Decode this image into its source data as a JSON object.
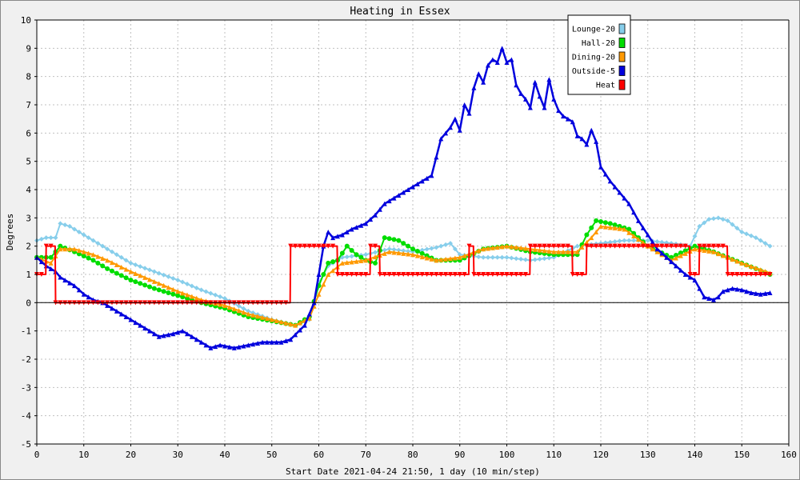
{
  "chart_data": {
    "type": "line",
    "title": "Heating in Essex",
    "xlabel": "Start Date 2021-04-24 21:50, 1 day (10 min/step)",
    "ylabel": "Degrees",
    "xlim": [
      0,
      160
    ],
    "ylim": [
      -5,
      10
    ],
    "xticks": [
      0,
      10,
      20,
      30,
      40,
      50,
      60,
      70,
      80,
      90,
      100,
      110,
      120,
      130,
      140,
      150,
      160
    ],
    "yticks": [
      -5,
      -4,
      -3,
      -2,
      -1,
      0,
      1,
      2,
      3,
      4,
      5,
      6,
      7,
      8,
      9,
      10
    ],
    "grid": true,
    "legend_position": "top-right",
    "series": [
      {
        "name": "Lounge-20",
        "color": "#87ceeb",
        "marker": "diamond",
        "x": [
          0,
          2,
          4,
          5,
          7,
          10,
          15,
          20,
          25,
          30,
          35,
          40,
          45,
          50,
          55,
          58,
          60,
          62,
          65,
          70,
          75,
          80,
          85,
          88,
          90,
          95,
          100,
          105,
          110,
          115,
          120,
          125,
          130,
          135,
          139,
          141,
          143,
          145,
          147,
          150,
          153,
          156
        ],
        "y": [
          2.2,
          2.3,
          2.3,
          2.8,
          2.7,
          2.4,
          1.9,
          1.4,
          1.1,
          0.8,
          0.45,
          0.15,
          -0.3,
          -0.6,
          -0.8,
          -0.6,
          0.7,
          1.3,
          1.6,
          1.7,
          1.9,
          1.8,
          1.95,
          2.1,
          1.7,
          1.6,
          1.6,
          1.5,
          1.6,
          2.0,
          2.1,
          2.2,
          2.2,
          2.1,
          2.0,
          2.7,
          2.95,
          3.0,
          2.9,
          2.5,
          2.3,
          2.0
        ]
      },
      {
        "name": "Hall-20",
        "color": "#00dd00",
        "marker": "circle",
        "x": [
          0,
          3,
          5,
          8,
          12,
          15,
          20,
          25,
          30,
          35,
          40,
          45,
          50,
          55,
          58,
          60,
          62,
          64,
          66,
          68,
          70,
          72,
          74,
          77,
          80,
          85,
          90,
          95,
          100,
          105,
          110,
          115,
          117,
          119,
          122,
          126,
          130,
          135,
          140,
          144,
          150,
          156
        ],
        "y": [
          1.6,
          1.6,
          2.0,
          1.8,
          1.5,
          1.2,
          0.8,
          0.5,
          0.25,
          0.0,
          -0.2,
          -0.5,
          -0.65,
          -0.8,
          -0.5,
          0.6,
          1.4,
          1.5,
          2.0,
          1.7,
          1.5,
          1.4,
          2.3,
          2.2,
          1.9,
          1.5,
          1.5,
          1.9,
          2.0,
          1.8,
          1.7,
          1.7,
          2.4,
          2.9,
          2.8,
          2.6,
          2.0,
          1.6,
          2.0,
          1.8,
          1.4,
          1.0
        ]
      },
      {
        "name": "Dining-20",
        "color": "#ff9900",
        "marker": "triangle",
        "x": [
          0,
          3,
          5,
          8,
          12,
          15,
          20,
          25,
          30,
          35,
          40,
          45,
          50,
          55,
          58,
          60,
          62,
          65,
          70,
          75,
          80,
          85,
          90,
          95,
          100,
          105,
          110,
          115,
          118,
          120,
          125,
          130,
          135,
          140,
          144,
          150,
          156
        ],
        "y": [
          1.6,
          1.4,
          1.9,
          1.9,
          1.7,
          1.5,
          1.1,
          0.75,
          0.4,
          0.1,
          -0.1,
          -0.4,
          -0.6,
          -0.8,
          -0.55,
          0.3,
          1.0,
          1.4,
          1.5,
          1.8,
          1.7,
          1.5,
          1.6,
          1.9,
          2.0,
          1.9,
          1.8,
          1.8,
          2.3,
          2.7,
          2.6,
          2.0,
          1.5,
          1.9,
          1.8,
          1.4,
          1.05
        ]
      },
      {
        "name": "Outside-5",
        "color": "#0000dd",
        "marker": "triangle",
        "x": [
          0,
          2,
          4,
          5,
          8,
          10,
          12,
          14,
          17,
          20,
          23,
          26,
          29,
          31,
          34,
          37,
          39,
          42,
          45,
          48,
          52,
          54,
          57,
          59,
          61,
          62,
          63,
          65,
          67,
          70,
          72,
          74,
          76,
          78,
          80,
          82,
          84,
          86,
          88,
          89,
          90,
          91,
          92,
          93,
          94,
          95,
          96,
          97,
          98,
          99,
          100,
          101,
          102,
          103,
          104,
          105,
          106,
          107,
          108,
          109,
          110,
          111,
          112,
          113,
          114,
          115,
          116,
          117,
          118,
          119,
          120,
          122,
          124,
          126,
          128,
          130,
          132,
          134,
          136,
          138,
          140,
          142,
          143,
          144,
          145,
          146,
          148,
          150,
          152,
          154,
          156
        ],
        "y": [
          1.6,
          1.3,
          1.1,
          0.9,
          0.6,
          0.3,
          0.1,
          0.0,
          -0.3,
          -0.6,
          -0.9,
          -1.2,
          -1.1,
          -1.0,
          -1.3,
          -1.6,
          -1.5,
          -1.6,
          -1.5,
          -1.4,
          -1.4,
          -1.3,
          -0.8,
          0.0,
          2.0,
          2.5,
          2.3,
          2.4,
          2.6,
          2.8,
          3.1,
          3.5,
          3.7,
          3.9,
          4.1,
          4.3,
          4.5,
          5.8,
          6.2,
          6.5,
          6.1,
          7.0,
          6.7,
          7.6,
          8.1,
          7.8,
          8.4,
          8.6,
          8.5,
          9.0,
          8.5,
          8.6,
          7.7,
          7.4,
          7.2,
          6.9,
          7.8,
          7.3,
          6.9,
          7.9,
          7.2,
          6.8,
          6.6,
          6.5,
          6.4,
          5.9,
          5.8,
          5.6,
          6.1,
          5.7,
          4.8,
          4.3,
          3.9,
          3.5,
          2.9,
          2.4,
          1.9,
          1.6,
          1.3,
          1.0,
          0.8,
          0.2,
          0.15,
          0.1,
          0.2,
          0.4,
          0.5,
          0.45,
          0.35,
          0.3,
          0.35
        ]
      },
      {
        "name": "Heat",
        "color": "#ff0000",
        "marker": "triangle-down",
        "x": [
          0,
          1.9,
          2,
          3.9,
          4,
          53.9,
          54,
          63.9,
          64,
          66,
          70.9,
          71,
          72.9,
          73,
          91.9,
          92,
          92.9,
          93,
          104.9,
          105,
          113.9,
          114,
          116.9,
          117,
          138.9,
          139,
          140.9,
          141,
          146.9,
          147,
          156
        ],
        "y": [
          1,
          1,
          2,
          2,
          0,
          0,
          2,
          2,
          1,
          1,
          1,
          2,
          2,
          1,
          1,
          2,
          2,
          1,
          1,
          2,
          2,
          1,
          1,
          2,
          2,
          1,
          1,
          2,
          2,
          1,
          1
        ]
      }
    ]
  }
}
